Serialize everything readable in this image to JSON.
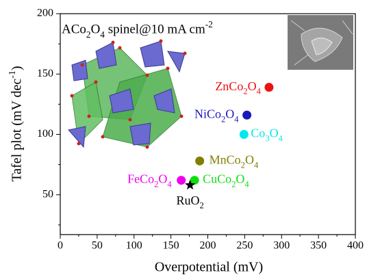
{
  "chart_data": {
    "type": "scatter",
    "annotation": "ACo2O4 spinel@10 mA cm-2",
    "x_label": "Overpotential (mV)",
    "y_label": "Tafel plot (mV dec-1)",
    "xlim": [
      0,
      400
    ],
    "xticks": [
      0,
      50,
      100,
      150,
      200,
      250,
      300,
      350,
      400
    ],
    "ylim": [
      17,
      200
    ],
    "yticks": [
      50,
      100,
      150,
      200
    ],
    "series": [
      {
        "name": "ZnCo2O4",
        "color": "#ee1111",
        "marker": "circle",
        "x": [
          283
        ],
        "values": [
          139
        ]
      },
      {
        "name": "NiCo2O4",
        "color": "#1a1ab8",
        "marker": "circle",
        "x": [
          253
        ],
        "values": [
          116
        ]
      },
      {
        "name": "Co3O4",
        "color": "#00e8f0",
        "marker": "circle",
        "x": [
          249
        ],
        "values": [
          100
        ]
      },
      {
        "name": "MnCo2O4",
        "color": "#808000",
        "marker": "circle",
        "x": [
          189
        ],
        "values": [
          78
        ]
      },
      {
        "name": "FeCo2O4",
        "color": "#ee00ee",
        "marker": "circle",
        "x": [
          164
        ],
        "values": [
          62
        ]
      },
      {
        "name": "CuCo2O4",
        "color": "#11dd11",
        "marker": "circle",
        "x": [
          182
        ],
        "values": [
          62
        ]
      },
      {
        "name": "RuO2",
        "color": "#000000",
        "marker": "star",
        "x": [
          176
        ],
        "values": [
          58
        ]
      }
    ]
  }
}
